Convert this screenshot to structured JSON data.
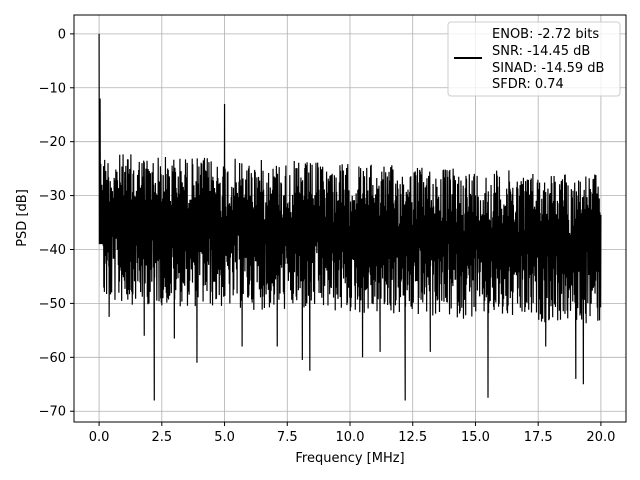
{
  "chart_data": {
    "type": "line",
    "title": "",
    "xlabel": "Frequency [MHz]",
    "ylabel": "PSD [dB]",
    "xlim": [
      -1.0,
      21.0
    ],
    "ylim": [
      -72.0,
      3.5
    ],
    "grid": true,
    "x_ticks": [
      0.0,
      2.5,
      5.0,
      7.5,
      10.0,
      12.5,
      15.0,
      17.5,
      20.0
    ],
    "x_tick_labels": [
      "0.0",
      "2.5",
      "5.0",
      "7.5",
      "10.0",
      "12.5",
      "15.0",
      "17.5",
      "20.0"
    ],
    "y_ticks": [
      0,
      -10,
      -20,
      -30,
      -40,
      -50,
      -60,
      -70
    ],
    "y_tick_labels": [
      "0",
      "−10",
      "−20",
      "−30",
      "−40",
      "−50",
      "−60",
      "−70"
    ],
    "legend_position": "top-right",
    "legend_lines": [
      "ENOB: -2.72 bits",
      "SNR: -14.45 dB",
      "SINAD: -14.59 dB",
      "SFDR: 0.74"
    ],
    "series": [
      {
        "color": "#000000",
        "x_range": [
          0.0,
          20.0
        ],
        "noise_floor_upper_db": -22,
        "noise_floor_lower_db": -46,
        "peaks": [
          {
            "x": 0.0,
            "y": 0.0
          },
          {
            "x": 0.04,
            "y": -12.0
          },
          {
            "x": 5.0,
            "y": -13.0
          }
        ],
        "notable_minima": [
          {
            "x": 0.4,
            "y": -52.5
          },
          {
            "x": 1.8,
            "y": -56.0
          },
          {
            "x": 2.2,
            "y": -68.0
          },
          {
            "x": 3.0,
            "y": -56.5
          },
          {
            "x": 3.9,
            "y": -61.0
          },
          {
            "x": 5.7,
            "y": -58.0
          },
          {
            "x": 7.1,
            "y": -58.0
          },
          {
            "x": 8.1,
            "y": -60.5
          },
          {
            "x": 8.4,
            "y": -62.5
          },
          {
            "x": 10.5,
            "y": -60.0
          },
          {
            "x": 11.2,
            "y": -59.0
          },
          {
            "x": 12.2,
            "y": -68.0
          },
          {
            "x": 13.2,
            "y": -59.0
          },
          {
            "x": 15.5,
            "y": -67.5
          },
          {
            "x": 17.8,
            "y": -58.0
          },
          {
            "x": 19.0,
            "y": -64.0
          },
          {
            "x": 19.3,
            "y": -65.0
          }
        ]
      }
    ]
  }
}
